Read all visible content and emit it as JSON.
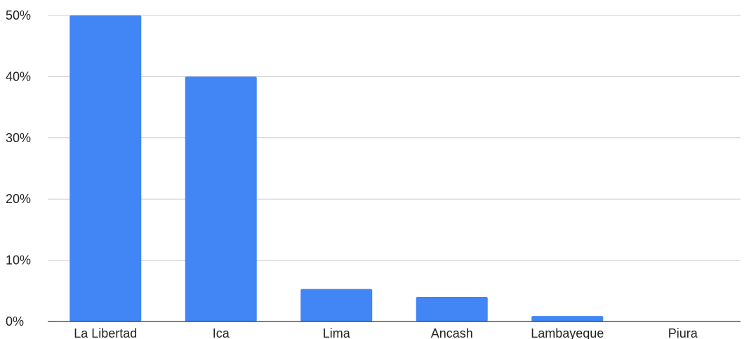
{
  "chart_data": {
    "type": "bar",
    "categories": [
      "La Libertad",
      "Ica",
      "Lima",
      "Ancash",
      "Lambayeque",
      "Piura"
    ],
    "values": [
      50,
      40,
      5.3,
      4,
      0.9,
      0
    ],
    "title": "",
    "xlabel": "",
    "ylabel": "",
    "ylim": [
      0,
      50
    ],
    "yticks": [
      "0%",
      "10%",
      "20%",
      "30%",
      "40%",
      "50%"
    ],
    "grid": true,
    "colors": {
      "bar": "#4285f4",
      "grid": "#cccccc",
      "axis": "#333333"
    }
  }
}
